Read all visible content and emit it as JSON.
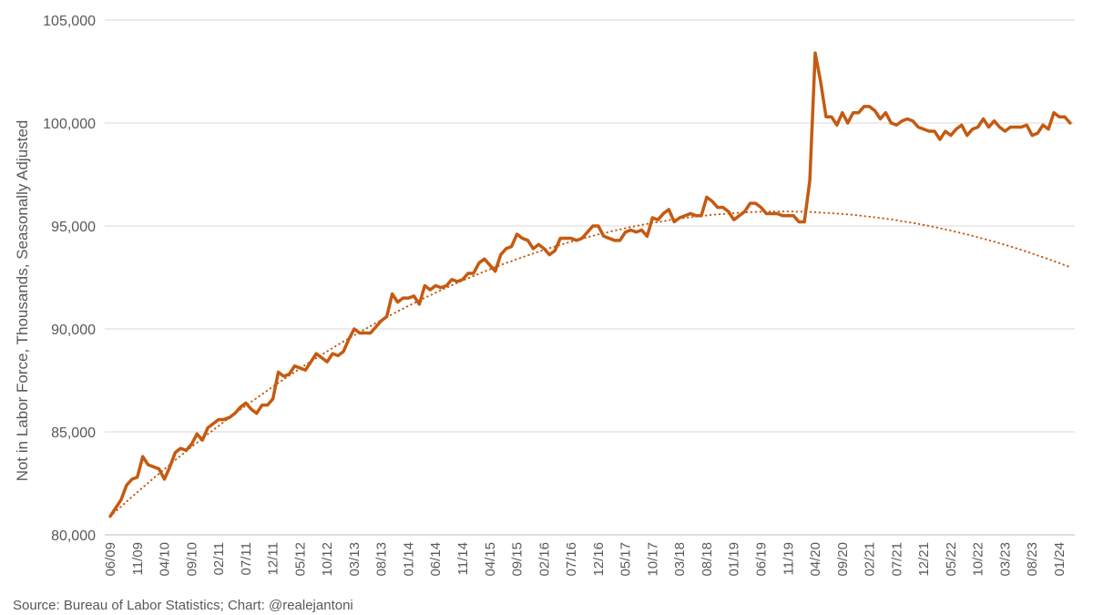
{
  "chart_data": {
    "type": "line",
    "y_label": "Not in Labor Force, Thousands, Seasonally Adjusted",
    "source": "Source: Bureau of Labor Statistics; Chart: @realejantoni",
    "categories": [
      "06/09",
      null,
      null,
      null,
      null,
      "11/09",
      null,
      null,
      null,
      null,
      "04/10",
      null,
      null,
      null,
      null,
      "09/10",
      null,
      null,
      null,
      null,
      "02/11",
      null,
      null,
      null,
      null,
      "07/11",
      null,
      null,
      null,
      null,
      "12/11",
      null,
      null,
      null,
      null,
      "05/12",
      null,
      null,
      null,
      null,
      "10/12",
      null,
      null,
      null,
      null,
      "03/13",
      null,
      null,
      null,
      null,
      "08/13",
      null,
      null,
      null,
      null,
      "01/14",
      null,
      null,
      null,
      null,
      "06/14",
      null,
      null,
      null,
      null,
      "11/14",
      null,
      null,
      null,
      null,
      "04/15",
      null,
      null,
      null,
      null,
      "09/15",
      null,
      null,
      null,
      null,
      "02/16",
      null,
      null,
      null,
      null,
      "07/16",
      null,
      null,
      null,
      null,
      "12/16",
      null,
      null,
      null,
      null,
      "05/17",
      null,
      null,
      null,
      null,
      "10/17",
      null,
      null,
      null,
      null,
      "03/18",
      null,
      null,
      null,
      null,
      "08/18",
      null,
      null,
      null,
      null,
      "01/19",
      null,
      null,
      null,
      null,
      "06/19",
      null,
      null,
      null,
      null,
      "11/19",
      null,
      null,
      null,
      null,
      "04/20",
      null,
      null,
      null,
      null,
      "09/20",
      null,
      null,
      null,
      null,
      "02/21",
      null,
      null,
      null,
      null,
      "07/21",
      null,
      null,
      null,
      null,
      "12/21",
      null,
      null,
      null,
      null,
      "05/22",
      null,
      null,
      null,
      null,
      "10/22",
      null,
      null,
      null,
      null,
      "03/23",
      null,
      null,
      null,
      null,
      "08/23",
      null,
      null,
      null,
      null,
      "01/24",
      null,
      null
    ],
    "series": [
      {
        "color": "#c55a11",
        "dash": "solid",
        "values": [
          80900,
          81300,
          81700,
          82400,
          82700,
          82800,
          83800,
          83400,
          83300,
          83200,
          82700,
          83300,
          84000,
          84200,
          84100,
          84400,
          84900,
          84600,
          85200,
          85400,
          85600,
          85600,
          85700,
          85900,
          86200,
          86400,
          86100,
          85900,
          86300,
          86300,
          86600,
          87900,
          87700,
          87800,
          88200,
          88100,
          88000,
          88400,
          88800,
          88600,
          88400,
          88800,
          88700,
          88900,
          89500,
          90000,
          89800,
          89800,
          89800,
          90100,
          90400,
          90600,
          91700,
          91300,
          91500,
          91500,
          91600,
          91200,
          92100,
          91900,
          92100,
          92000,
          92100,
          92400,
          92300,
          92400,
          92700,
          92700,
          93200,
          93400,
          93100,
          92800,
          93600,
          93900,
          94000,
          94600,
          94400,
          94300,
          93900,
          94100,
          93900,
          93600,
          93800,
          94400,
          94400,
          94400,
          94300,
          94400,
          94700,
          95000,
          95000,
          94500,
          94400,
          94300,
          94300,
          94700,
          94800,
          94700,
          94800,
          94500,
          95400,
          95300,
          95600,
          95800,
          95200,
          95400,
          95500,
          95600,
          95500,
          95500,
          96400,
          96200,
          95900,
          95900,
          95700,
          95300,
          95500,
          95700,
          96100,
          96100,
          95900,
          95600,
          95600,
          95600,
          95500,
          95500,
          95500,
          95200,
          95200,
          97200,
          103400,
          102000,
          100300,
          100300,
          99900,
          100500,
          100000,
          100500,
          100500,
          100800,
          100800,
          100600,
          100200,
          100500,
          100000,
          99900,
          100100,
          100200,
          100100,
          99800,
          99700,
          99600,
          99600,
          99200,
          99600,
          99400,
          99700,
          99900,
          99400,
          99700,
          99800,
          100200,
          99800,
          100100,
          99800,
          99600,
          99800,
          99800,
          99800,
          99900,
          99400,
          99500,
          99900,
          99700,
          100500,
          100300,
          100300,
          100000
        ]
      },
      {
        "color": "#c55a11",
        "dash": "dotted",
        "values": [
          80900,
          81140,
          81370,
          81610,
          81840,
          82070,
          82300,
          82520,
          82750,
          82970,
          83190,
          83410,
          83630,
          83840,
          84050,
          84270,
          84470,
          84680,
          84890,
          85090,
          85290,
          85490,
          85690,
          85880,
          86080,
          86270,
          86460,
          86640,
          86830,
          87010,
          87200,
          87380,
          87550,
          87730,
          87900,
          88080,
          88250,
          88420,
          88580,
          88750,
          88910,
          89070,
          89230,
          89390,
          89540,
          89690,
          89840,
          89990,
          90140,
          90290,
          90430,
          90570,
          90710,
          90850,
          90980,
          91120,
          91250,
          91380,
          91510,
          91630,
          91760,
          91880,
          92000,
          92120,
          92240,
          92350,
          92460,
          92570,
          92680,
          92790,
          92890,
          93000,
          93100,
          93200,
          93290,
          93390,
          93480,
          93570,
          93660,
          93750,
          93840,
          93920,
          94000,
          94080,
          94160,
          94240,
          94310,
          94380,
          94450,
          94520,
          94590,
          94650,
          94710,
          94780,
          94830,
          94890,
          94950,
          95000,
          95050,
          95100,
          95150,
          95190,
          95230,
          95280,
          95320,
          95350,
          95390,
          95420,
          95450,
          95480,
          95510,
          95540,
          95560,
          95580,
          95600,
          95620,
          95640,
          95650,
          95670,
          95680,
          95690,
          95690,
          95700,
          95700,
          95700,
          95700,
          95700,
          95690,
          95690,
          95680,
          95670,
          95650,
          95640,
          95620,
          95600,
          95580,
          95560,
          95540,
          95510,
          95480,
          95450,
          95420,
          95390,
          95350,
          95320,
          95280,
          95230,
          95190,
          95150,
          95100,
          95050,
          95000,
          94950,
          94890,
          94830,
          94780,
          94710,
          94650,
          94590,
          94520,
          94450,
          94380,
          94310,
          94240,
          94160,
          94080,
          94000,
          93920,
          93840,
          93750,
          93660,
          93570,
          93480,
          93390,
          93290,
          93200,
          93100,
          93000
        ]
      }
    ],
    "ylim": [
      80000,
      105000
    ],
    "yticks": [
      {
        "value": 80000,
        "label": "80,000"
      },
      {
        "value": 85000,
        "label": "85,000"
      },
      {
        "value": 90000,
        "label": "90,000"
      },
      {
        "value": 95000,
        "label": "95,000"
      },
      {
        "value": 100000,
        "label": "100,000"
      },
      {
        "value": 105000,
        "label": "105,000"
      }
    ],
    "grid": true
  }
}
